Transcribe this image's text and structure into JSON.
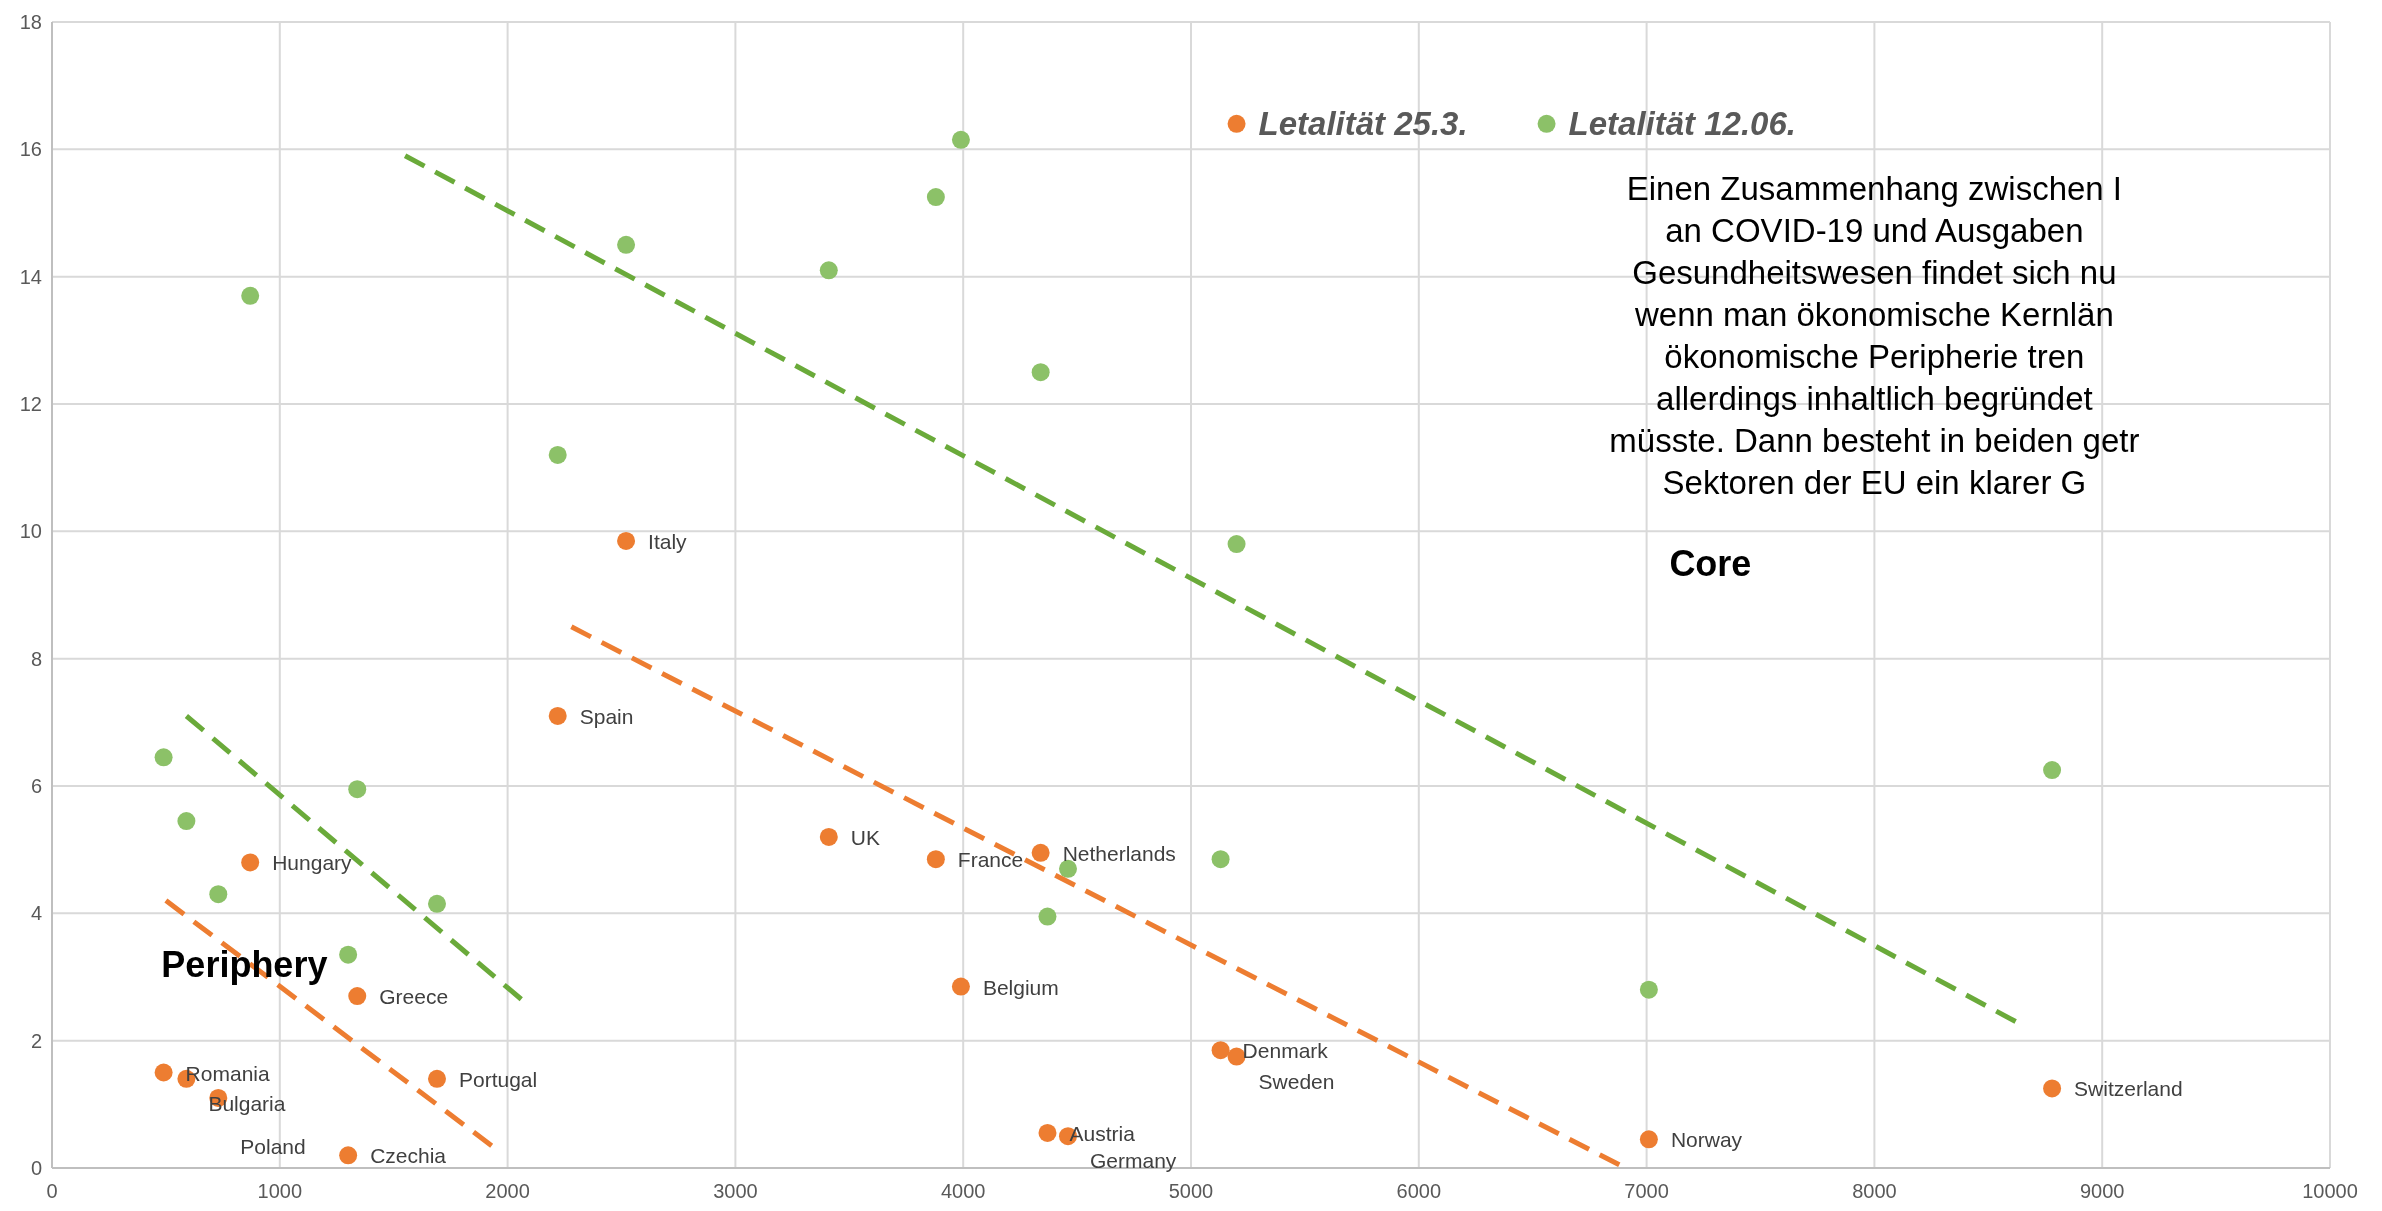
{
  "chart_data": {
    "type": "scatter",
    "x": [
      2520,
      2220,
      3410,
      3880,
      4340,
      870,
      1340,
      3990,
      490,
      590,
      730,
      1690,
      1300,
      4370,
      4460,
      5130,
      5200,
      7010,
      8780
    ],
    "series": [
      {
        "name": "Letalität 25.3.",
        "color": "#ed7d31",
        "values": [
          9.85,
          7.1,
          5.2,
          4.85,
          4.95,
          4.8,
          2.7,
          2.85,
          1.5,
          1.4,
          1.1,
          1.4,
          0.2,
          0.55,
          0.5,
          1.85,
          1.75,
          0.45,
          1.25
        ]
      },
      {
        "name": "Letalität 12.06.",
        "color": "#8cc168",
        "values": [
          14.5,
          11.2,
          14.1,
          15.25,
          12.5,
          13.7,
          5.95,
          16.15,
          6.45,
          5.45,
          4.3,
          4.15,
          3.35,
          3.95,
          4.7,
          4.85,
          9.8,
          2.8,
          6.25
        ]
      },
      {
        "type": "line",
        "color": "#ed7d31",
        "line_style": "dashed",
        "marker": "none",
        "x": [
          500,
          1930
        ],
        "values": [
          4.2,
          0.35
        ]
      },
      {
        "type": "line",
        "color": "#ed7d31",
        "line_style": "dashed",
        "marker": "none",
        "x": [
          2280,
          6880
        ],
        "values": [
          8.5,
          0.05
        ]
      },
      {
        "type": "line",
        "color": "#6aaa3a",
        "line_style": "dashed",
        "marker": "none",
        "x": [
          590,
          2060
        ],
        "values": [
          7.1,
          2.65
        ]
      },
      {
        "type": "line",
        "color": "#6aaa3a",
        "line_style": "dashed",
        "marker": "none",
        "x": [
          1550,
          8620
        ],
        "values": [
          15.9,
          2.3
        ]
      }
    ],
    "annotations": [
      {
        "text": "Italy",
        "x": 2520,
        "y": 9.85
      },
      {
        "text": "Spain",
        "x": 2220,
        "y": 7.1
      },
      {
        "text": "UK",
        "x": 3410,
        "y": 5.2
      },
      {
        "text": "France",
        "x": 3880,
        "y": 4.85
      },
      {
        "text": "Netherlands",
        "x": 4340,
        "y": 4.95
      },
      {
        "text": "Hungary",
        "x": 870,
        "y": 4.8
      },
      {
        "text": "Greece",
        "x": 1340,
        "y": 2.7
      },
      {
        "text": "Belgium",
        "x": 3990,
        "y": 2.85
      },
      {
        "text": "Romania",
        "x": 490,
        "y": 1.5
      },
      {
        "text": "Bulgaria",
        "x": 590,
        "y": 1.4
      },
      {
        "text": "Poland",
        "x": 730,
        "y": 1.1
      },
      {
        "text": "Portugal",
        "x": 1690,
        "y": 1.4
      },
      {
        "text": "Czechia",
        "x": 1300,
        "y": 0.2
      },
      {
        "text": "Austria",
        "x": 4370,
        "y": 0.55
      },
      {
        "text": "Germany",
        "x": 4460,
        "y": 0.5
      },
      {
        "text": "Denmark",
        "x": 5130,
        "y": 1.85
      },
      {
        "text": "Sweden",
        "x": 5200,
        "y": 1.75
      },
      {
        "text": "Norway",
        "x": 7010,
        "y": 0.45
      },
      {
        "text": "Switzerland",
        "x": 8780,
        "y": 1.25
      },
      "Periphery",
      "Core",
      "Einen Zusammenhang zwischen I\nan COVID-19 und Ausgaben\nGesundheitswesen findet sich nu\nwenn man ökonomische Kernlän\nökonomische Peripherie tren\nallerdings inhaltlich begründet\nmüsste. Dann besteht in beiden getr\nSektoren der EU ein klarer G"
    ],
    "xlim": [
      0,
      10000
    ],
    "xticks": [
      0,
      1000,
      2000,
      3000,
      4000,
      5000,
      6000,
      7000,
      8000,
      9000,
      10000
    ],
    "ylim": [
      0,
      18
    ],
    "yticks": [
      0,
      2,
      4,
      6,
      8,
      10,
      12,
      14,
      16,
      18
    ],
    "grid": true,
    "legend": "top right",
    "marker": "circle"
  }
}
